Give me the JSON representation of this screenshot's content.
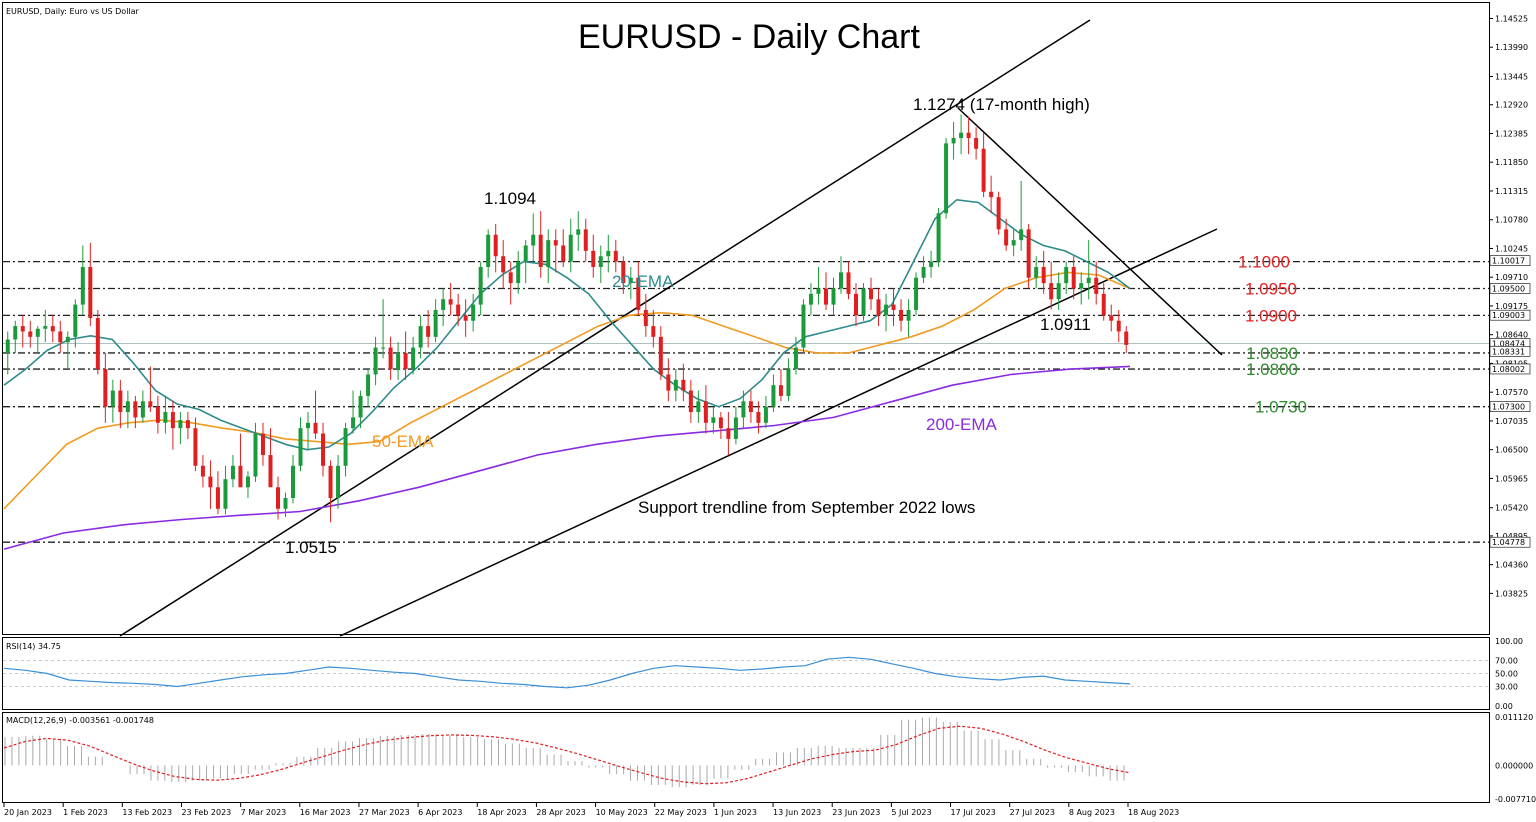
{
  "chart_data": {
    "type": "candlestick",
    "title": "EURUSD - Daily Chart",
    "symbol_label": "EURUSD, Daily:  Euro vs US Dollar",
    "price_axis": {
      "min": 1.0333,
      "max": 1.1472,
      "ticks": [
        "1.14525",
        "1.13990",
        "1.13445",
        "1.12920",
        "1.12385",
        "1.11850",
        "1.11315",
        "1.10780",
        "1.10245",
        "1.09710",
        "1.09175",
        "1.08640",
        "1.08105",
        "1.07570",
        "1.07035",
        "1.06500",
        "1.05965",
        "1.05420",
        "1.04895",
        "1.04360",
        "1.03825"
      ]
    },
    "x_axis": {
      "labels": [
        "20 Jan 2023",
        "1 Feb 2023",
        "13 Feb 2023",
        "23 Feb 2023",
        "7 Mar 2023",
        "16 Mar 2023",
        "27 Mar 2023",
        "6 Apr 2023",
        "18 Apr 2023",
        "28 Apr 2023",
        "10 May 2023",
        "22 May 2023",
        "1 Jun 2023",
        "13 Jun 2023",
        "23 Jun 2023",
        "5 Jul 2023",
        "17 Jul 2023",
        "27 Jul 2023",
        "8 Aug 2023",
        "18 Aug 2023"
      ]
    },
    "candles_ohlc": [
      [
        1.083,
        1.087,
        1.079,
        1.0855
      ],
      [
        1.0855,
        1.089,
        1.083,
        1.088
      ],
      [
        1.088,
        1.09,
        1.084,
        1.087
      ],
      [
        1.087,
        1.089,
        1.084,
        1.086
      ],
      [
        1.086,
        1.088,
        1.083,
        1.0875
      ],
      [
        1.0875,
        1.091,
        1.085,
        1.088
      ],
      [
        1.088,
        1.09,
        1.085,
        1.087
      ],
      [
        1.087,
        1.089,
        1.083,
        1.085
      ],
      [
        1.085,
        1.087,
        1.08,
        1.086
      ],
      [
        1.086,
        1.093,
        1.084,
        1.092
      ],
      [
        1.092,
        1.103,
        1.09,
        1.099
      ],
      [
        1.099,
        1.1035,
        1.088,
        1.0895
      ],
      [
        1.0895,
        1.091,
        1.079,
        1.08
      ],
      [
        1.08,
        1.083,
        1.07,
        1.073
      ],
      [
        1.073,
        1.078,
        1.07,
        1.076
      ],
      [
        1.076,
        1.078,
        1.069,
        1.072
      ],
      [
        1.072,
        1.076,
        1.069,
        1.074
      ],
      [
        1.074,
        1.075,
        1.069,
        1.071
      ],
      [
        1.071,
        1.076,
        1.07,
        1.074
      ],
      [
        1.074,
        1.0805,
        1.072,
        1.073
      ],
      [
        1.073,
        1.075,
        1.068,
        1.07
      ],
      [
        1.07,
        1.075,
        1.068,
        1.072
      ],
      [
        1.072,
        1.074,
        1.065,
        1.069
      ],
      [
        1.069,
        1.072,
        1.066,
        1.0705
      ],
      [
        1.0705,
        1.072,
        1.067,
        1.069
      ],
      [
        1.069,
        1.071,
        1.061,
        1.062
      ],
      [
        1.062,
        1.064,
        1.058,
        1.06
      ],
      [
        1.06,
        1.063,
        1.054,
        1.058
      ],
      [
        1.058,
        1.061,
        1.053,
        1.054
      ],
      [
        1.054,
        1.062,
        1.053,
        1.0595
      ],
      [
        1.0595,
        1.064,
        1.058,
        1.062
      ],
      [
        1.062,
        1.068,
        1.059,
        1.058
      ],
      [
        1.058,
        1.061,
        1.056,
        1.06
      ],
      [
        1.06,
        1.07,
        1.059,
        1.068
      ],
      [
        1.068,
        1.07,
        1.062,
        1.064
      ],
      [
        1.064,
        1.069,
        1.061,
        1.058
      ],
      [
        1.058,
        1.06,
        1.052,
        1.054
      ],
      [
        1.054,
        1.057,
        1.0525,
        1.056
      ],
      [
        1.056,
        1.064,
        1.055,
        1.062
      ],
      [
        1.062,
        1.071,
        1.061,
        1.069
      ],
      [
        1.069,
        1.072,
        1.065,
        1.07
      ],
      [
        1.07,
        1.076,
        1.067,
        1.068
      ],
      [
        1.068,
        1.07,
        1.06,
        1.062
      ],
      [
        1.062,
        1.063,
        1.0515,
        1.056
      ],
      [
        1.056,
        1.064,
        1.054,
        1.062
      ],
      [
        1.062,
        1.07,
        1.06,
        1.069
      ],
      [
        1.069,
        1.076,
        1.068,
        1.071
      ],
      [
        1.071,
        1.076,
        1.069,
        1.075
      ],
      [
        1.075,
        1.08,
        1.073,
        1.079
      ],
      [
        1.079,
        1.086,
        1.077,
        1.084
      ],
      [
        1.084,
        1.093,
        1.082,
        1.084
      ],
      [
        1.084,
        1.086,
        1.078,
        1.08
      ],
      [
        1.08,
        1.085,
        1.078,
        1.083
      ],
      [
        1.083,
        1.087,
        1.078,
        1.08
      ],
      [
        1.08,
        1.086,
        1.079,
        1.084
      ],
      [
        1.084,
        1.09,
        1.082,
        1.088
      ],
      [
        1.088,
        1.091,
        1.084,
        1.086
      ],
      [
        1.086,
        1.093,
        1.085,
        1.091
      ],
      [
        1.091,
        1.095,
        1.088,
        1.093
      ],
      [
        1.093,
        1.096,
        1.09,
        1.092
      ],
      [
        1.092,
        1.094,
        1.088,
        1.09
      ],
      [
        1.09,
        1.093,
        1.086,
        1.089
      ],
      [
        1.089,
        1.094,
        1.087,
        1.092
      ],
      [
        1.092,
        1.1,
        1.09,
        1.099
      ],
      [
        1.099,
        1.106,
        1.097,
        1.105
      ],
      [
        1.105,
        1.107,
        1.098,
        1.101
      ],
      [
        1.101,
        1.104,
        1.095,
        1.098
      ],
      [
        1.098,
        1.1,
        1.092,
        1.096
      ],
      [
        1.096,
        1.102,
        1.094,
        1.1
      ],
      [
        1.1,
        1.104,
        1.096,
        1.103
      ],
      [
        1.103,
        1.109,
        1.1,
        1.105
      ],
      [
        1.105,
        1.1094,
        1.097,
        1.099
      ],
      [
        1.099,
        1.106,
        1.096,
        1.104
      ],
      [
        1.104,
        1.106,
        1.098,
        1.103
      ],
      [
        1.103,
        1.106,
        1.099,
        1.1
      ],
      [
        1.1,
        1.108,
        1.098,
        1.105
      ],
      [
        1.105,
        1.1094,
        1.102,
        1.106
      ],
      [
        1.106,
        1.108,
        1.1,
        1.102
      ],
      [
        1.102,
        1.105,
        1.097,
        1.099
      ],
      [
        1.099,
        1.103,
        1.096,
        1.101
      ],
      [
        1.101,
        1.105,
        1.098,
        1.102
      ],
      [
        1.102,
        1.104,
        1.098,
        1.1
      ],
      [
        1.1,
        1.101,
        1.094,
        1.096
      ],
      [
        1.096,
        1.099,
        1.093,
        1.097
      ],
      [
        1.097,
        1.1,
        1.09,
        1.091
      ],
      [
        1.091,
        1.094,
        1.086,
        1.088
      ],
      [
        1.088,
        1.091,
        1.084,
        1.086
      ],
      [
        1.086,
        1.088,
        1.078,
        1.079
      ],
      [
        1.079,
        1.082,
        1.074,
        1.076
      ],
      [
        1.076,
        1.08,
        1.074,
        1.078
      ],
      [
        1.078,
        1.081,
        1.074,
        1.076
      ],
      [
        1.076,
        1.078,
        1.07,
        1.072
      ],
      [
        1.072,
        1.076,
        1.07,
        1.074
      ],
      [
        1.074,
        1.077,
        1.068,
        1.07
      ],
      [
        1.07,
        1.073,
        1.068,
        1.071
      ],
      [
        1.071,
        1.072,
        1.067,
        1.069
      ],
      [
        1.069,
        1.072,
        1.064,
        1.067
      ],
      [
        1.067,
        1.073,
        1.066,
        1.071
      ],
      [
        1.071,
        1.076,
        1.069,
        1.074
      ],
      [
        1.074,
        1.076,
        1.07,
        1.072
      ],
      [
        1.072,
        1.074,
        1.068,
        1.07
      ],
      [
        1.07,
        1.075,
        1.069,
        1.073
      ],
      [
        1.073,
        1.079,
        1.072,
        1.077
      ],
      [
        1.077,
        1.08,
        1.074,
        1.075
      ],
      [
        1.075,
        1.082,
        1.074,
        1.08
      ],
      [
        1.08,
        1.086,
        1.079,
        1.084
      ],
      [
        1.084,
        1.093,
        1.083,
        1.092
      ],
      [
        1.092,
        1.096,
        1.09,
        1.094
      ],
      [
        1.094,
        1.099,
        1.092,
        1.095
      ],
      [
        1.095,
        1.098,
        1.091,
        1.092
      ],
      [
        1.092,
        1.097,
        1.09,
        1.095
      ],
      [
        1.095,
        1.101,
        1.094,
        1.098
      ],
      [
        1.098,
        1.1,
        1.093,
        1.094
      ],
      [
        1.094,
        1.096,
        1.088,
        1.09
      ],
      [
        1.09,
        1.096,
        1.089,
        1.095
      ],
      [
        1.095,
        1.097,
        1.091,
        1.093
      ],
      [
        1.093,
        1.095,
        1.088,
        1.09
      ],
      [
        1.09,
        1.094,
        1.087,
        1.092
      ],
      [
        1.092,
        1.095,
        1.088,
        1.091
      ],
      [
        1.091,
        1.093,
        1.087,
        1.089
      ],
      [
        1.089,
        1.093,
        1.086,
        1.091
      ],
      [
        1.091,
        1.098,
        1.09,
        1.097
      ],
      [
        1.097,
        1.101,
        1.096,
        1.099
      ],
      [
        1.099,
        1.102,
        1.097,
        1.1
      ],
      [
        1.1,
        1.11,
        1.099,
        1.109
      ],
      [
        1.109,
        1.123,
        1.108,
        1.122
      ],
      [
        1.122,
        1.126,
        1.119,
        1.123
      ],
      [
        1.123,
        1.1274,
        1.12,
        1.124
      ],
      [
        1.124,
        1.127,
        1.12,
        1.123
      ],
      [
        1.123,
        1.125,
        1.119,
        1.121
      ],
      [
        1.121,
        1.124,
        1.112,
        1.113
      ],
      [
        1.113,
        1.116,
        1.109,
        1.112
      ],
      [
        1.112,
        1.113,
        1.105,
        1.106
      ],
      [
        1.106,
        1.108,
        1.102,
        1.103
      ],
      [
        1.103,
        1.106,
        1.101,
        1.104
      ],
      [
        1.104,
        1.115,
        1.102,
        1.106
      ],
      [
        1.106,
        1.107,
        1.095,
        1.097
      ],
      [
        1.097,
        1.101,
        1.095,
        1.099
      ],
      [
        1.099,
        1.102,
        1.094,
        1.096
      ],
      [
        1.096,
        1.1,
        1.0911,
        1.093
      ],
      [
        1.093,
        1.098,
        1.091,
        1.096
      ],
      [
        1.096,
        1.1,
        1.094,
        1.099
      ],
      [
        1.099,
        1.101,
        1.093,
        1.095
      ],
      [
        1.095,
        1.098,
        1.092,
        1.096
      ],
      [
        1.096,
        1.104,
        1.093,
        1.097
      ],
      [
        1.097,
        1.1,
        1.092,
        1.094
      ],
      [
        1.094,
        1.096,
        1.089,
        1.09
      ],
      [
        1.09,
        1.092,
        1.087,
        1.089
      ],
      [
        1.089,
        1.091,
        1.085,
        1.087
      ],
      [
        1.087,
        1.088,
        1.083,
        1.0845
      ]
    ],
    "ema20": [
      1.077,
      1.08,
      1.0835,
      1.0855,
      1.0862,
      1.0855,
      1.081,
      1.076,
      1.0735,
      1.0725,
      1.0705,
      1.069,
      1.0675,
      1.066,
      1.065,
      1.0655,
      1.068,
      1.072,
      1.0765,
      1.08,
      1.084,
      1.089,
      1.094,
      1.0975,
      1.1,
      1.0995,
      1.097,
      1.094,
      1.089,
      1.0845,
      1.08,
      1.077,
      1.0745,
      1.073,
      1.0745,
      1.078,
      1.083,
      1.086,
      1.087,
      1.088,
      1.089,
      1.092,
      1.1,
      1.108,
      1.1115,
      1.111,
      1.108,
      1.105,
      1.103,
      1.102,
      1.1,
      1.098,
      1.095
    ],
    "ema50": [
      1.054,
      1.06,
      1.066,
      1.069,
      1.07,
      1.0705,
      1.07,
      1.069,
      1.0682,
      1.067,
      1.0665,
      1.066,
      1.0665,
      1.07,
      1.073,
      1.076,
      1.079,
      1.082,
      1.085,
      1.088,
      1.09,
      1.0905,
      1.09,
      1.088,
      1.086,
      1.084,
      1.083,
      1.083,
      1.0845,
      1.086,
      1.088,
      1.091,
      1.095,
      1.097,
      1.098,
      1.0975,
      1.095
    ],
    "ema200": [
      1.0465,
      1.0495,
      1.051,
      1.052,
      1.0528,
      1.0535,
      1.0555,
      1.058,
      1.061,
      1.064,
      1.066,
      1.0675,
      1.0685,
      1.0695,
      1.071,
      1.074,
      1.077,
      1.079,
      1.08,
      1.0805
    ],
    "levels": [
      {
        "label": "1.1000",
        "value": 1.1,
        "color": "#e02020"
      },
      {
        "label": "1.0950",
        "value": 1.095,
        "color": "#e02020"
      },
      {
        "label": "1.0900",
        "value": 1.09,
        "color": "#e02020"
      },
      {
        "label": "1.0830",
        "value": 1.083,
        "color": "#2e8b2e"
      },
      {
        "label": "1.0800",
        "value": 1.08,
        "color": "#2e8b2e"
      },
      {
        "label": "1.0730",
        "value": 1.073,
        "color": "#2e8b2e"
      },
      {
        "value": 1.04778
      }
    ],
    "axis_markers": [
      "1.10017",
      "1.09500",
      "1.09003",
      "1.08474",
      "1.08331",
      "1.08002",
      "1.07300",
      "1.04778"
    ],
    "annotations": {
      "high": "1.1274 (17-month high)",
      "peak_apr": "1.1094",
      "low_mar": "1.0515",
      "low_jul": "1.0911",
      "trendline": "Support trendline from September 2022 lows",
      "ema20": "20-EMA",
      "ema50": "50-EMA",
      "ema200": "200-EMA"
    },
    "rsi": {
      "label": "RSI(14) 34.75",
      "ticks": [
        "100.00",
        "70.00",
        "50.00",
        "30.00",
        "0.00"
      ],
      "values": [
        58,
        55,
        50,
        40,
        38,
        36,
        35,
        33,
        30,
        35,
        40,
        45,
        48,
        50,
        55,
        60,
        58,
        55,
        52,
        50,
        45,
        40,
        38,
        35,
        33,
        30,
        28,
        32,
        40,
        50,
        58,
        62,
        60,
        58,
        55,
        57,
        60,
        62,
        72,
        75,
        72,
        65,
        58,
        50,
        45,
        42,
        40,
        44,
        46,
        40,
        38,
        36,
        34
      ]
    },
    "macd": {
      "label": "MACD(12,26,9) -0.003561 -0.001748",
      "ticks": [
        "0.011120",
        "0.000000",
        "-0.007710"
      ],
      "hist": [
        0.0065,
        0.0068,
        0.006,
        0.0045,
        0.002,
        0.0,
        -0.002,
        -0.0035,
        -0.0038,
        -0.0035,
        -0.003,
        -0.002,
        -0.001,
        0.0005,
        0.002,
        0.004,
        0.0055,
        0.0063,
        0.0068,
        0.007,
        0.0072,
        0.007,
        0.0065,
        0.006,
        0.005,
        0.004,
        0.0025,
        0.001,
        -0.0005,
        -0.002,
        -0.0035,
        -0.0045,
        -0.005,
        -0.0045,
        -0.003,
        -0.001,
        0.0015,
        0.003,
        0.004,
        0.0045,
        0.004,
        0.004,
        0.007,
        0.0105,
        0.011,
        0.01,
        0.008,
        0.006,
        0.0035,
        0.0015,
        -0.0005,
        -0.0015,
        -0.0025,
        -0.0035
      ],
      "signal": [
        0.004,
        0.0055,
        0.0062,
        0.0058,
        0.0045,
        0.0025,
        0.0005,
        -0.0012,
        -0.0025,
        -0.0032,
        -0.0034,
        -0.003,
        -0.0022,
        -0.001,
        0.0005,
        0.002,
        0.0035,
        0.0048,
        0.0058,
        0.0064,
        0.0068,
        0.007,
        0.0069,
        0.0066,
        0.006,
        0.0052,
        0.004,
        0.0027,
        0.0012,
        -0.0003,
        -0.0017,
        -0.003,
        -0.0038,
        -0.0042,
        -0.004,
        -0.003,
        -0.0015,
        0.0,
        0.0015,
        0.0025,
        0.0032,
        0.0035,
        0.0048,
        0.0068,
        0.0085,
        0.009,
        0.0085,
        0.0072,
        0.0055,
        0.0035,
        0.0018,
        0.0005,
        -0.0008,
        -0.0017
      ]
    }
  }
}
